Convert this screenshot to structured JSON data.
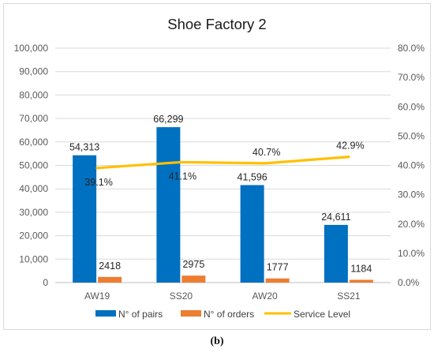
{
  "caption": "(b)",
  "colors": {
    "pairs": "#0070c0",
    "orders": "#ed7d31",
    "service": "#ffc000",
    "grid": "#d9d9d9",
    "axis_text": "#595959"
  },
  "chart_data": {
    "type": "bar",
    "title": "Shoe Factory 2",
    "categories": [
      "AW19",
      "SS20",
      "AW20",
      "SS21"
    ],
    "series": [
      {
        "name": "N° of pairs",
        "kind": "bar",
        "axis": "left",
        "values": [
          54313,
          66299,
          41596,
          24611
        ],
        "labels": [
          "54,313",
          "66,299",
          "41,596",
          "24,611"
        ]
      },
      {
        "name": "N° of orders",
        "kind": "bar",
        "axis": "left",
        "values": [
          2418,
          2975,
          1777,
          1184
        ],
        "labels": [
          "2418",
          "2975",
          "1777",
          "1184"
        ]
      },
      {
        "name": "Service Level",
        "kind": "line",
        "axis": "right",
        "values": [
          39.1,
          41.1,
          40.7,
          42.9
        ],
        "labels": [
          "39.1%",
          "41.1%",
          "40.7%",
          "42.9%"
        ]
      }
    ],
    "y_left": {
      "range": [
        0,
        100000
      ],
      "ticks": [
        "0",
        "10,000",
        "20,000",
        "30,000",
        "40,000",
        "50,000",
        "60,000",
        "70,000",
        "80,000",
        "90,000",
        "100,000"
      ]
    },
    "y_right": {
      "range": [
        0,
        80
      ],
      "ticks": [
        "0.0%",
        "10.0%",
        "20.0%",
        "30.0%",
        "40.0%",
        "50.0%",
        "60.0%",
        "70.0%",
        "80.0%"
      ]
    },
    "grid": true,
    "legend": "bottom"
  }
}
